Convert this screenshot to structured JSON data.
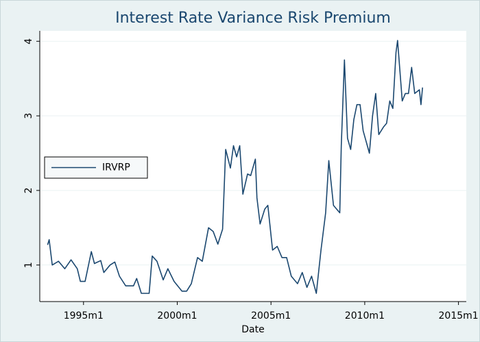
{
  "chart_data": {
    "type": "line",
    "title": "Interest Rate Variance Risk Premium",
    "x_label": "Date",
    "grid": true,
    "legend_position": "left",
    "xlim": [
      "1992m9",
      "2015m6"
    ],
    "xticks": [
      "1995m1",
      "2000m1",
      "2005m1",
      "2010m1",
      "2015m1"
    ],
    "ylim": [
      0.51,
      4.14
    ],
    "yticks": [
      1,
      2,
      3,
      4
    ],
    "x": [
      "1993m2",
      "1993m3",
      "1993m5",
      "1993m9",
      "1994m1",
      "1994m5",
      "1994m9",
      "1994m11",
      "1995m2",
      "1995m6",
      "1995m8",
      "1995m12",
      "1996m2",
      "1996m6",
      "1996m9",
      "1996m12",
      "1997m4",
      "1997m9",
      "1997m11",
      "1998m2",
      "1998m7",
      "1998m9",
      "1998m12",
      "1999m4",
      "1999m7",
      "1999m11",
      "2000m4",
      "2000m7",
      "2000m10",
      "2001m2",
      "2001m5",
      "2001m9",
      "2001m12",
      "2002m3",
      "2002m6",
      "2002m8",
      "2002m11",
      "2003m1",
      "2003m3",
      "2003m5",
      "2003m7",
      "2003m10",
      "2003m12",
      "2004m3",
      "2004m4",
      "2004m6",
      "2004m9",
      "2004m11",
      "2005m2",
      "2005m5",
      "2005m8",
      "2005m11",
      "2006m2",
      "2006m6",
      "2006m9",
      "2006m12",
      "2007m3",
      "2007m6",
      "2007m9",
      "2007m12",
      "2008m2",
      "2008m5",
      "2008m9",
      "2008m10",
      "2008m12",
      "2009m2",
      "2009m4",
      "2009m6",
      "2009m8",
      "2009m10",
      "2009m12",
      "2010m4",
      "2010m6",
      "2010m8",
      "2010m10",
      "2011m1",
      "2011m3",
      "2011m5",
      "2011m7",
      "2011m9",
      "2011m10",
      "2012m1",
      "2012m3",
      "2012m5",
      "2012m7",
      "2012m9",
      "2012m12",
      "2013m1",
      "2013m2"
    ],
    "series": [
      {
        "name": "IRVRP",
        "color": "#1a476f",
        "values": [
          1.27,
          1.34,
          1.0,
          1.05,
          0.95,
          1.07,
          0.95,
          0.78,
          0.78,
          1.18,
          1.02,
          1.06,
          0.9,
          1.0,
          1.04,
          0.85,
          0.72,
          0.72,
          0.82,
          0.62,
          0.62,
          1.12,
          1.05,
          0.8,
          0.95,
          0.78,
          0.65,
          0.65,
          0.75,
          1.1,
          1.05,
          1.5,
          1.45,
          1.28,
          1.48,
          2.55,
          2.3,
          2.6,
          2.45,
          2.6,
          1.95,
          2.22,
          2.2,
          2.42,
          1.9,
          1.55,
          1.75,
          1.8,
          1.2,
          1.25,
          1.1,
          1.1,
          0.85,
          0.75,
          0.9,
          0.7,
          0.85,
          0.62,
          1.2,
          1.7,
          2.4,
          1.8,
          1.7,
          2.6,
          3.75,
          2.7,
          2.55,
          2.95,
          3.15,
          3.15,
          2.8,
          2.5,
          3.0,
          3.3,
          2.75,
          2.85,
          2.9,
          3.2,
          3.1,
          3.85,
          4.01,
          3.2,
          3.3,
          3.3,
          3.65,
          3.3,
          3.35,
          3.15,
          3.38
        ]
      }
    ]
  }
}
